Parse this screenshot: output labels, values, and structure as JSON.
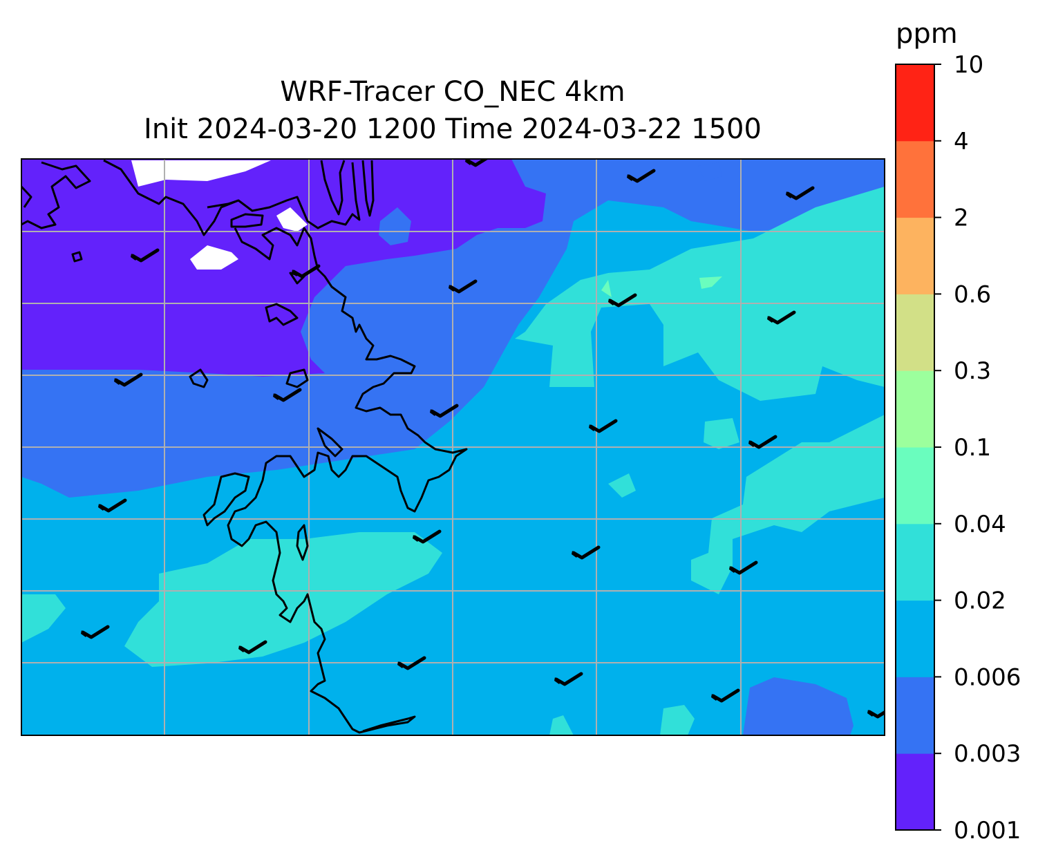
{
  "title": {
    "line1": "WRF-Tracer CO_NEC 4km",
    "line2": "Init 2024-03-20 1200 Time 2024-03-22 1500"
  },
  "colorbar": {
    "unit": "ppm",
    "levels": [
      "0.001",
      "0.003",
      "0.006",
      "0.02",
      "0.04",
      "0.1",
      "0.3",
      "0.6",
      "2",
      "4",
      "10"
    ],
    "colors": [
      "#6322fb",
      "#3573f3",
      "#00b1ec",
      "#31e0d9",
      "#6afdbe",
      "#9cff9d",
      "#d2e087",
      "#fdb35f",
      "#ff723b",
      "#ff2315"
    ]
  },
  "map": {
    "grid": true,
    "colors": {
      "lowest": "#6322fb",
      "low": "#3573f3",
      "mid": "#00b1ec",
      "upper": "#31e0d9",
      "high": "#6afdbe",
      "missing": "#ffffff",
      "coastline": "#000000",
      "gridline": "#b0b0b0"
    }
  }
}
